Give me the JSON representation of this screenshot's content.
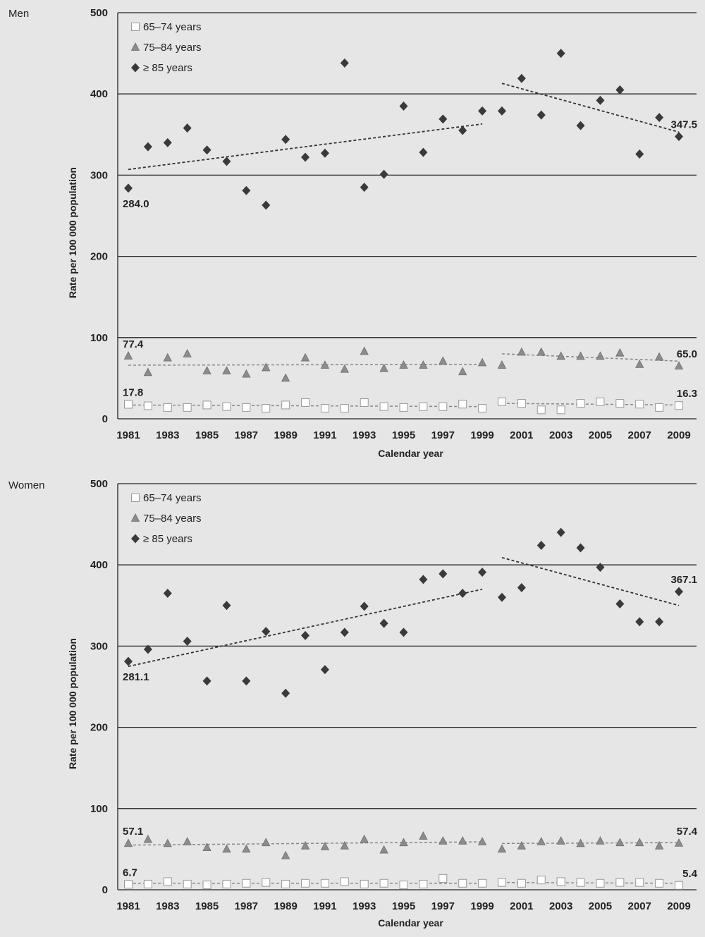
{
  "chart_data": [
    {
      "type": "scatter",
      "panel_label": "Men",
      "title": "",
      "xlabel": "Calendar year",
      "ylabel": "Rate per 100 000 population",
      "ylim": [
        0,
        500
      ],
      "yticks": [
        "0",
        "100",
        "200",
        "300",
        "400",
        "500"
      ],
      "xlim": [
        1981,
        2009
      ],
      "xticks": [
        "1981",
        "1983",
        "1985",
        "1987",
        "1989",
        "1991",
        "1993",
        "1995",
        "1997",
        "1999",
        "2001",
        "2003",
        "2005",
        "2007",
        "2009"
      ],
      "grid": "horizontal",
      "legend_position": "top-left",
      "x": [
        1981,
        1982,
        1983,
        1984,
        1985,
        1986,
        1987,
        1988,
        1989,
        1990,
        1991,
        1992,
        1993,
        1994,
        1995,
        1996,
        1997,
        1998,
        1999,
        2000,
        2001,
        2002,
        2003,
        2004,
        2005,
        2006,
        2007,
        2008,
        2009
      ],
      "series": [
        {
          "name": "65–74 years",
          "marker": "square",
          "color": "#ffffff",
          "values": [
            17.8,
            16,
            14,
            14,
            17,
            15,
            14,
            13,
            17,
            20,
            13,
            13,
            20,
            15,
            14,
            15,
            15,
            18,
            13,
            21,
            19,
            11,
            11,
            19,
            21,
            19,
            18,
            14,
            16.3
          ],
          "trend": [
            {
              "from": 1981,
              "to": 1999,
              "start": 17,
              "end": 15
            },
            {
              "from": 2000,
              "to": 2009,
              "start": 19,
              "end": 17
            }
          ]
        },
        {
          "name": "75–84 years",
          "marker": "triangle",
          "color": "#8c8c8c",
          "values": [
            77.4,
            57,
            75,
            80,
            59,
            59,
            55,
            63,
            50,
            75,
            66,
            61,
            83,
            62,
            66,
            66,
            71,
            58,
            69,
            66,
            82,
            82,
            77,
            77,
            77,
            81,
            67,
            76,
            65.0
          ],
          "trend": [
            {
              "from": 1981,
              "to": 1999,
              "start": 66,
              "end": 67
            },
            {
              "from": 2000,
              "to": 2009,
              "start": 80,
              "end": 71
            }
          ]
        },
        {
          "name": "≥ 85 years",
          "marker": "diamond",
          "color": "#3a3a3a",
          "values": [
            284.0,
            335,
            340,
            358,
            331,
            317,
            281,
            263,
            344,
            322,
            327,
            438,
            285,
            301,
            385,
            328,
            369,
            355,
            379,
            379,
            419,
            374,
            450,
            361,
            392,
            405,
            326,
            371,
            347.5
          ],
          "trend": [
            {
              "from": 1981,
              "to": 1999,
              "start": 307,
              "end": 363
            },
            {
              "from": 2000,
              "to": 2009,
              "start": 413,
              "end": 353
            }
          ]
        }
      ],
      "annotations": [
        {
          "text": "284.0",
          "series": 2,
          "x": 1981,
          "pos": "below"
        },
        {
          "text": "347.5",
          "series": 2,
          "x": 2009,
          "pos": "above"
        },
        {
          "text": "77.4",
          "series": 1,
          "x": 1981,
          "pos": "above"
        },
        {
          "text": "65.0",
          "series": 1,
          "x": 2009,
          "pos": "above"
        },
        {
          "text": "17.8",
          "series": 0,
          "x": 1981,
          "pos": "above"
        },
        {
          "text": "16.3",
          "series": 0,
          "x": 2009,
          "pos": "above"
        }
      ]
    },
    {
      "type": "scatter",
      "panel_label": "Women",
      "title": "",
      "xlabel": "Calendar year",
      "ylabel": "Rate per 100 000 population",
      "ylim": [
        0,
        500
      ],
      "yticks": [
        "0",
        "100",
        "200",
        "300",
        "400",
        "500"
      ],
      "xlim": [
        1981,
        2009
      ],
      "xticks": [
        "1981",
        "1983",
        "1985",
        "1987",
        "1989",
        "1991",
        "1993",
        "1995",
        "1997",
        "1999",
        "2001",
        "2003",
        "2005",
        "2007",
        "2009"
      ],
      "grid": "horizontal",
      "legend_position": "top-left",
      "x": [
        1981,
        1982,
        1983,
        1984,
        1985,
        1986,
        1987,
        1988,
        1989,
        1990,
        1991,
        1992,
        1993,
        1994,
        1995,
        1996,
        1997,
        1998,
        1999,
        2000,
        2001,
        2002,
        2003,
        2004,
        2005,
        2006,
        2007,
        2008,
        2009
      ],
      "series": [
        {
          "name": "65–74 years",
          "marker": "square",
          "color": "#ffffff",
          "values": [
            6.7,
            7,
            10,
            7,
            6,
            7,
            8,
            9,
            7,
            8,
            8,
            10,
            7,
            8,
            6,
            7,
            14,
            8,
            8,
            9,
            8,
            12,
            10,
            9,
            8,
            9,
            9,
            8,
            5.4
          ],
          "trend": [
            {
              "from": 1981,
              "to": 1999,
              "start": 8,
              "end": 8
            },
            {
              "from": 2000,
              "to": 2009,
              "start": 9,
              "end": 8
            }
          ]
        },
        {
          "name": "75–84 years",
          "marker": "triangle",
          "color": "#8c8c8c",
          "values": [
            57.1,
            62,
            57,
            59,
            52,
            50,
            50,
            58,
            42,
            54,
            53,
            54,
            62,
            49,
            58,
            66,
            60,
            60,
            59,
            50,
            54,
            59,
            60,
            57,
            60,
            58,
            58,
            54,
            57.4
          ],
          "trend": [
            {
              "from": 1981,
              "to": 1999,
              "start": 55,
              "end": 59
            },
            {
              "from": 2000,
              "to": 2009,
              "start": 57,
              "end": 58
            }
          ]
        },
        {
          "name": "≥ 85 years",
          "marker": "diamond",
          "color": "#3a3a3a",
          "values": [
            281.1,
            296,
            365,
            306,
            257,
            350,
            257,
            318,
            242,
            313,
            271,
            317,
            349,
            328,
            317,
            382,
            389,
            365,
            391,
            360,
            372,
            424,
            440,
            421,
            397,
            352,
            330,
            330,
            367.1
          ],
          "trend": [
            {
              "from": 1981,
              "to": 1999,
              "start": 275,
              "end": 370
            },
            {
              "from": 2000,
              "to": 2009,
              "start": 409,
              "end": 350
            }
          ]
        }
      ],
      "annotations": [
        {
          "text": "281.1",
          "series": 2,
          "x": 1981,
          "pos": "below"
        },
        {
          "text": "367.1",
          "series": 2,
          "x": 2009,
          "pos": "above"
        },
        {
          "text": "57.1",
          "series": 1,
          "x": 1981,
          "pos": "above"
        },
        {
          "text": "57.4",
          "series": 1,
          "x": 2009,
          "pos": "above"
        },
        {
          "text": "6.7",
          "series": 0,
          "x": 1981,
          "pos": "above"
        },
        {
          "text": "5.4",
          "series": 0,
          "x": 2009,
          "pos": "above"
        }
      ]
    }
  ]
}
